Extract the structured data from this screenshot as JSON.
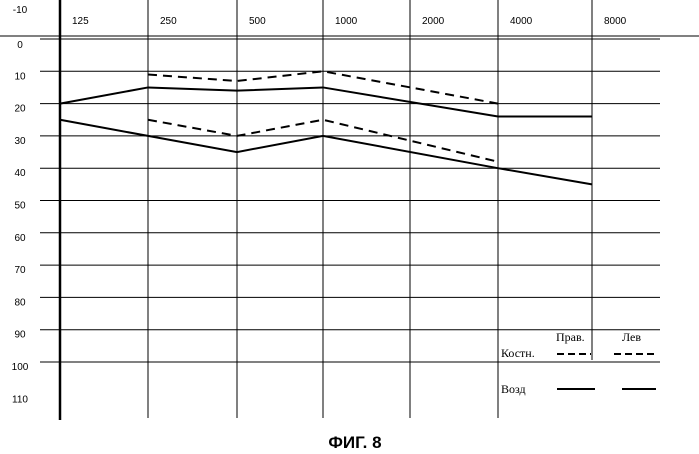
{
  "chart_data": {
    "type": "line",
    "caption": "ФИГ. 8",
    "x_ticks": [
      "125",
      "250",
      "500",
      "1000",
      "2000",
      "4000",
      "8000"
    ],
    "y_ticks": [
      "-10",
      "0",
      "10",
      "20",
      "30",
      "40",
      "50",
      "60",
      "70",
      "80",
      "90",
      "100",
      "110"
    ],
    "ylim": [
      -10,
      110
    ],
    "y_inverted": true,
    "grid": true,
    "legend": {
      "col_right": "Прав.",
      "col_left": "Лев",
      "row_bone": "Костн.",
      "row_air": "Возд"
    },
    "series": [
      {
        "style": "dashed",
        "x": [
          "250",
          "500",
          "1000",
          "4000"
        ],
        "values": [
          11,
          13,
          10,
          20
        ]
      },
      {
        "style": "dashed",
        "x": [
          "250",
          "500",
          "1000",
          "4000"
        ],
        "values": [
          25,
          30,
          25,
          38
        ]
      },
      {
        "style": "solid",
        "x": [
          "125",
          "250",
          "500",
          "1000",
          "4000",
          "8000"
        ],
        "values": [
          20,
          15,
          16,
          15,
          24,
          24
        ]
      },
      {
        "style": "solid",
        "x": [
          "125",
          "250",
          "500",
          "1000",
          "4000",
          "8000"
        ],
        "values": [
          25,
          30,
          35,
          30,
          40,
          45
        ]
      }
    ]
  }
}
